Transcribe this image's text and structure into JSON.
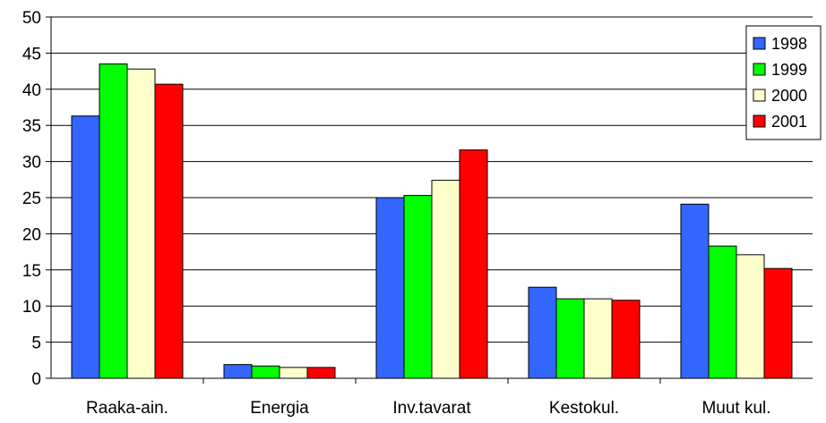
{
  "chart_data": {
    "type": "bar",
    "categories": [
      "Raaka-ain.",
      "Energia",
      "Inv.tavarat",
      "Kestokul.",
      "Muut kul."
    ],
    "series": [
      {
        "name": "1998",
        "color": "#3366FF",
        "values": [
          36.3,
          1.9,
          25.0,
          12.6,
          24.1
        ]
      },
      {
        "name": "1999",
        "color": "#00FF00",
        "values": [
          43.5,
          1.7,
          25.3,
          11.0,
          18.3
        ]
      },
      {
        "name": "2000",
        "color": "#FFFFCC",
        "values": [
          42.8,
          1.5,
          27.4,
          11.0,
          17.1
        ]
      },
      {
        "name": "2001",
        "color": "#FF0000",
        "values": [
          40.7,
          1.5,
          31.6,
          10.8,
          15.2
        ]
      }
    ],
    "yticks": [
      "0",
      "5",
      "10",
      "15",
      "20",
      "25",
      "30",
      "35",
      "40",
      "45",
      "50"
    ],
    "ylim": [
      0,
      50
    ],
    "grid": true,
    "legend_position": "top-right",
    "title": "",
    "xlabel": "",
    "ylabel": ""
  }
}
